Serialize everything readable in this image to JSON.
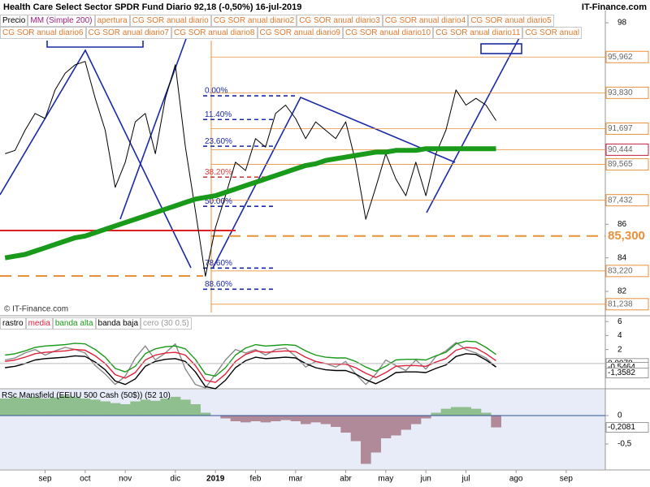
{
  "header": {
    "title": "Health Care Select Sector SPDR Fund   Diario   92,18 (-0,50%)   16-jul-2019",
    "brand": "IT-Finance.com",
    "watermark": "© IT-Finance.com"
  },
  "legend_extra": [
    "apertura",
    "CG SOR anual diario",
    "CG SOR anual diario2",
    "CG SOR anual diario3",
    "CG SOR anual diario4",
    "CG SOR anual diario5",
    "CG SOR anual diario6",
    "CG SOR anual diario7",
    "CG SOR anual diario8",
    "CG SOR anual diario9",
    "CG SOR anual diario10",
    "CG SOR anual diario11",
    "CG SOR anual"
  ],
  "chart_data": [
    {
      "type": "line",
      "categories": [
        null,
        null,
        null,
        null,
        "sep",
        null,
        null,
        null,
        "oct",
        null,
        null,
        null,
        "nov",
        null,
        null,
        null,
        null,
        "dic",
        null,
        null,
        null,
        "2019",
        null,
        null,
        null,
        "feb",
        null,
        null,
        null,
        "mar",
        null,
        null,
        null,
        null,
        "abr",
        null,
        null,
        null,
        "may",
        null,
        null,
        null,
        "jun",
        null,
        null,
        null,
        "jul",
        null,
        null,
        null,
        null,
        "ago",
        null,
        null,
        null,
        null,
        "sep",
        null,
        null,
        null
      ],
      "series": [
        {
          "name": "Precio",
          "color": "#000000",
          "values": [
            90.2,
            90.4,
            91.6,
            92.6,
            92.3,
            94.0,
            95.0,
            95.5,
            95.7,
            93.5,
            91.6,
            88.2,
            89.7,
            92.1,
            92.6,
            90.2,
            93.5,
            95.5,
            90.6,
            86.8,
            82.9,
            85.8,
            87.7,
            89.7,
            89.2,
            91.1,
            90.6,
            92.6,
            93.1,
            92.3,
            91.1,
            92.1,
            91.6,
            91.1,
            92.1,
            89.7,
            86.3,
            88.2,
            90.2,
            88.7,
            87.7,
            89.7,
            87.7,
            90.2,
            91.6,
            94.0,
            93.1,
            93.5,
            93.1,
            92.18,
            null,
            null,
            null,
            null,
            null,
            null,
            null,
            null,
            null,
            null
          ]
        },
        {
          "name": "MM (Simple 200)",
          "color": "#1a9a1a",
          "values": [
            84.0,
            84.1,
            84.2,
            84.4,
            84.6,
            84.8,
            85.0,
            85.2,
            85.3,
            85.5,
            85.7,
            85.9,
            86.1,
            86.3,
            86.5,
            86.7,
            86.9,
            87.1,
            87.3,
            87.5,
            87.6,
            87.7,
            87.9,
            88.1,
            88.3,
            88.5,
            88.7,
            88.9,
            89.1,
            89.3,
            89.5,
            89.6,
            89.8,
            89.9,
            90.0,
            90.1,
            90.2,
            90.3,
            90.3,
            90.4,
            90.4,
            90.4,
            90.5,
            90.5,
            90.5,
            90.5,
            90.5,
            90.5,
            90.5,
            90.5,
            null,
            null,
            null,
            null,
            null,
            null,
            null,
            null,
            null,
            null
          ]
        }
      ],
      "ylim": [
        80.6,
        98.73
      ],
      "yticks": [
        82,
        84,
        86,
        98
      ],
      "levels": [
        {
          "value": 95.962,
          "label": "95,962"
        },
        {
          "value": 93.83,
          "label": "93,830"
        },
        {
          "value": 91.697,
          "label": "91,697"
        },
        {
          "value": 90.444,
          "label": "90,444"
        },
        {
          "value": 89.565,
          "label": "89,565"
        },
        {
          "value": 87.432,
          "label": "87,432"
        },
        {
          "value": 85.3,
          "label": "85,300"
        },
        {
          "value": 83.22,
          "label": "83,220"
        },
        {
          "value": 81.238,
          "label": "81,238"
        }
      ],
      "fib_levels": [
        {
          "value": 93.65,
          "label": "0.00%"
        },
        {
          "value": 92.24,
          "label": "11.40%"
        },
        {
          "value": 90.65,
          "label": "23.60%"
        },
        {
          "value": 88.81,
          "label": "38.20%"
        },
        {
          "value": 87.07,
          "label": "50.00%"
        },
        {
          "value": 83.39,
          "label": "78.60%"
        },
        {
          "value": 82.13,
          "label": "88.60%"
        }
      ]
    },
    {
      "type": "line",
      "series": [
        {
          "name": "rastro",
          "color": "#8a8a8a",
          "values": [
            0.5,
            0.8,
            1.5,
            2.0,
            1.2,
            1.8,
            2.3,
            2.0,
            1.5,
            -0.3,
            -1.5,
            -3.0,
            -1.8,
            0.8,
            2.5,
            0.5,
            1.5,
            2.8,
            -0.8,
            -3.0,
            -3.5,
            -1.5,
            0.5,
            2.0,
            1.5,
            2.0,
            1.2,
            2.0,
            2.2,
            1.0,
            -0.5,
            0.3,
            0.0,
            -0.5,
            0.3,
            -1.5,
            -3.0,
            -1.5,
            0.5,
            -0.3,
            -1.0,
            0.5,
            -0.8,
            1.0,
            1.8,
            3.0,
            2.0,
            1.5,
            0.8,
            -0.5
          ]
        },
        {
          "name": "media",
          "color": "#e0203a",
          "values": [
            0.3,
            0.5,
            0.9,
            1.4,
            1.6,
            1.7,
            1.8,
            2.0,
            1.9,
            1.1,
            0.0,
            -1.6,
            -2.1,
            -1.3,
            0.5,
            1.2,
            1.5,
            1.6,
            1.2,
            -0.3,
            -2.4,
            -2.7,
            -1.5,
            0.3,
            1.3,
            1.8,
            1.6,
            1.7,
            1.8,
            1.7,
            0.9,
            0.3,
            0.0,
            -0.1,
            -0.1,
            -0.6,
            -1.4,
            -2.0,
            -1.3,
            -0.4,
            -0.3,
            -0.3,
            -0.4,
            0.2,
            0.7,
            1.9,
            2.3,
            2.2,
            1.4,
            0.4
          ]
        },
        {
          "name": "banda alta",
          "color": "#1a9a1a",
          "values": [
            1.2,
            1.4,
            1.8,
            2.3,
            2.5,
            2.6,
            2.7,
            2.9,
            2.8,
            2.0,
            0.9,
            -0.7,
            -1.2,
            -0.4,
            1.4,
            2.1,
            2.4,
            2.5,
            2.1,
            0.6,
            -1.5,
            -1.8,
            -0.6,
            1.2,
            2.2,
            2.7,
            2.5,
            2.6,
            2.7,
            2.6,
            1.8,
            1.2,
            0.9,
            0.8,
            0.8,
            0.3,
            -0.5,
            -1.1,
            -0.4,
            0.5,
            0.6,
            0.6,
            0.5,
            1.1,
            1.6,
            2.8,
            3.2,
            3.1,
            2.3,
            1.3
          ]
        },
        {
          "name": "banda baja",
          "color": "#000000",
          "values": [
            -0.6,
            -0.4,
            0.0,
            0.5,
            0.7,
            0.8,
            0.9,
            1.1,
            1.0,
            0.2,
            -0.9,
            -2.5,
            -3.0,
            -2.2,
            -0.4,
            0.3,
            0.6,
            0.7,
            0.3,
            -1.2,
            -3.3,
            -3.6,
            -2.4,
            -0.6,
            0.4,
            0.9,
            0.7,
            0.8,
            0.9,
            0.8,
            0.0,
            -0.6,
            -0.9,
            -1.0,
            -1.0,
            -1.5,
            -2.3,
            -2.9,
            -2.2,
            -1.3,
            -1.2,
            -1.2,
            -1.3,
            -0.7,
            -0.2,
            1.0,
            1.4,
            1.3,
            0.5,
            -0.5
          ]
        }
      ],
      "legend_extra": [
        "cero (30 0.5)"
      ],
      "ylim": [
        -3.5,
        6.6
      ],
      "yticks": [
        2,
        4,
        6
      ],
      "levels": [
        {
          "value": 0.0078,
          "label": "0,0078"
        },
        {
          "value": -0.5464,
          "label": "-0,5464"
        },
        {
          "value": -1.3582,
          "label": "-1,3582"
        }
      ]
    },
    {
      "type": "area",
      "title": "RSc Mansfield (EEUU 500 Cash (50$)) (52 10)",
      "values": [
        0.3,
        0.32,
        0.3,
        0.33,
        0.3,
        0.32,
        0.35,
        0.33,
        0.3,
        0.28,
        0.25,
        0.22,
        0.2,
        0.25,
        0.28,
        0.26,
        0.3,
        0.33,
        0.28,
        0.2,
        0.05,
        0.0,
        -0.05,
        -0.1,
        -0.12,
        -0.1,
        -0.12,
        -0.1,
        -0.08,
        -0.1,
        -0.15,
        -0.12,
        -0.15,
        -0.2,
        -0.3,
        -0.45,
        -0.85,
        -0.65,
        -0.4,
        -0.35,
        -0.25,
        -0.15,
        -0.05,
        0.05,
        0.12,
        0.15,
        0.15,
        0.12,
        0.05,
        -0.2081
      ],
      "positive_color": "#8fbf8f",
      "negative_color": "#b08a98",
      "ylim": [
        -0.943,
        0.457
      ],
      "yticks": [
        0,
        {
          "value": -0.5,
          "label": "-0,5"
        }
      ],
      "levels": [
        {
          "value": -0.2081,
          "label": "-0,2081"
        }
      ]
    }
  ]
}
